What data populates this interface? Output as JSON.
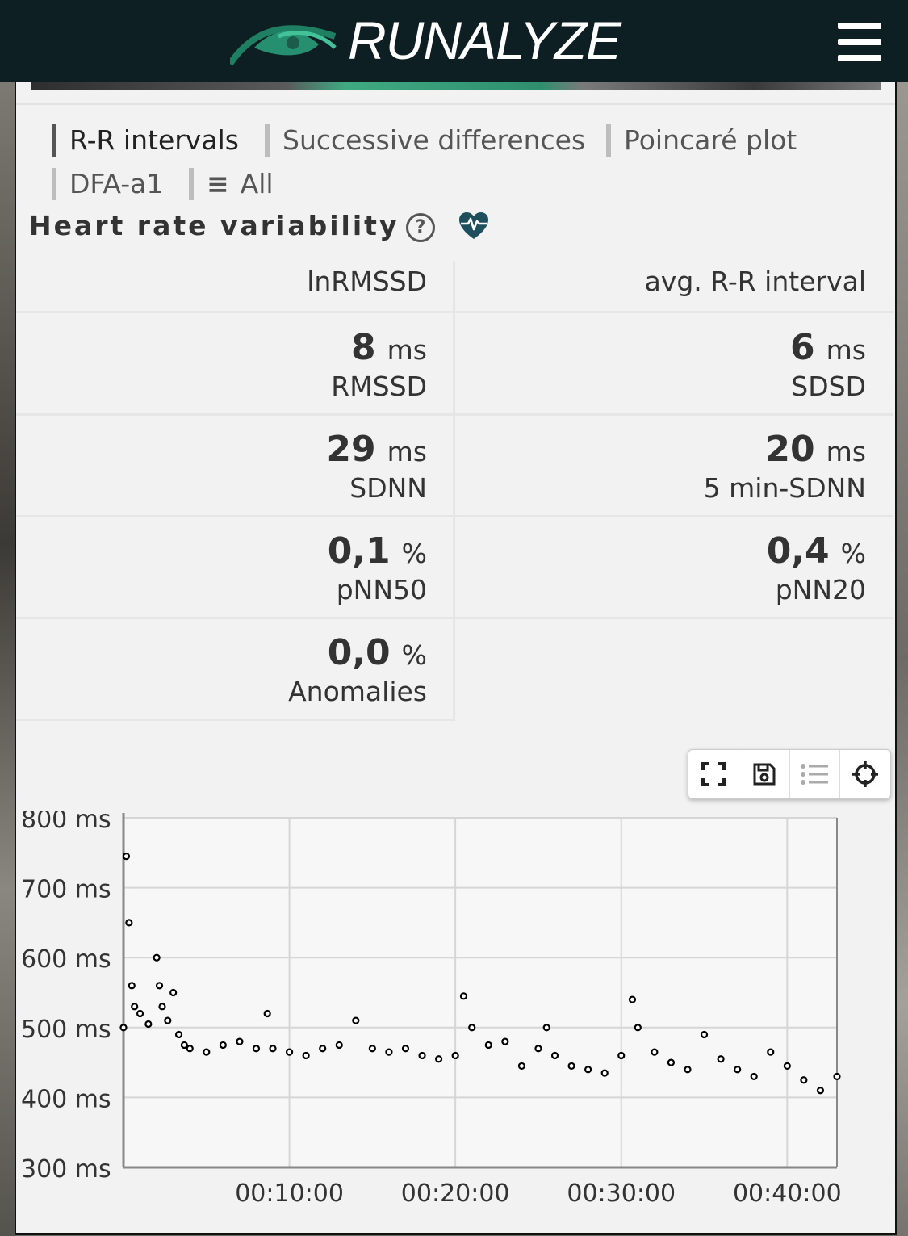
{
  "header": {
    "logo_text": "RUNALYZE",
    "menu_icon": "hamburger-icon"
  },
  "tabs": [
    {
      "label": "R-R intervals",
      "active": true
    },
    {
      "label": "Successive differences",
      "active": false
    },
    {
      "label": "Poincaré plot",
      "active": false
    },
    {
      "label": "DFA-a1",
      "active": false
    },
    {
      "label": "All",
      "active": false,
      "icon": "list-icon"
    }
  ],
  "section": {
    "title": "Heart rate variability",
    "help_icon": "help-circle-icon",
    "status_icon": "heart-pulse-icon",
    "status_color": "#1d4f5c"
  },
  "metrics": {
    "row0": {
      "left_label": "lnRMSSD",
      "right_label": "avg. R-R interval"
    },
    "row1": {
      "left_value": "8",
      "left_unit": "ms",
      "left_label": "RMSSD",
      "right_value": "6",
      "right_unit": "ms",
      "right_label": "SDSD"
    },
    "row2": {
      "left_value": "29",
      "left_unit": "ms",
      "left_label": "SDNN",
      "right_value": "20",
      "right_unit": "ms",
      "right_label": "5 min-SDNN"
    },
    "row3": {
      "left_value": "0,1",
      "left_unit": "%",
      "left_label": "pNN50",
      "right_value": "0,4",
      "right_unit": "%",
      "right_label": "pNN20"
    },
    "row4": {
      "left_value": "0,0",
      "left_unit": "%",
      "left_label": "Anomalies"
    }
  },
  "chart_toolbar": [
    "fullscreen-icon",
    "save-icon",
    "list-icon",
    "crosshair-icon"
  ],
  "chart_data": {
    "type": "scatter",
    "title": "",
    "xlabel": "",
    "ylabel": "",
    "ylim": [
      300,
      800
    ],
    "xlim_seconds": [
      0,
      2580
    ],
    "y_ticks": [
      "800 ms",
      "700 ms",
      "600 ms",
      "500 ms",
      "400 ms",
      "300 ms"
    ],
    "x_ticks": [
      "00:10:00",
      "00:20:00",
      "00:30:00",
      "00:40:00"
    ],
    "grid": true,
    "series": [
      {
        "color": "#000000",
        "x": [
          "00:00:00",
          "00:00:10",
          "00:00:20",
          "00:00:30",
          "00:00:40",
          "00:01:00",
          "00:01:30",
          "00:02:00",
          "00:02:10",
          "00:02:20",
          "00:02:40",
          "00:03:00",
          "00:03:20",
          "00:03:40",
          "00:04:00",
          "00:05:00",
          "00:06:00",
          "00:07:00",
          "00:08:00",
          "00:08:40",
          "00:09:00",
          "00:10:00",
          "00:11:00",
          "00:12:00",
          "00:13:00",
          "00:14:00",
          "00:15:00",
          "00:16:00",
          "00:17:00",
          "00:18:00",
          "00:19:00",
          "00:20:00",
          "00:20:30",
          "00:21:00",
          "00:22:00",
          "00:23:00",
          "00:24:00",
          "00:25:00",
          "00:25:30",
          "00:26:00",
          "00:27:00",
          "00:28:00",
          "00:29:00",
          "00:30:00",
          "00:30:40",
          "00:31:00",
          "00:32:00",
          "00:33:00",
          "00:34:00",
          "00:35:00",
          "00:36:00",
          "00:37:00",
          "00:38:00",
          "00:39:00",
          "00:40:00",
          "00:41:00",
          "00:42:00",
          "00:43:00"
        ],
        "y": [
          500,
          745,
          650,
          560,
          530,
          520,
          505,
          600,
          560,
          530,
          510,
          550,
          490,
          475,
          470,
          465,
          475,
          480,
          470,
          520,
          470,
          465,
          460,
          470,
          475,
          510,
          470,
          465,
          470,
          460,
          455,
          460,
          545,
          500,
          475,
          480,
          445,
          470,
          500,
          460,
          445,
          440,
          435,
          460,
          540,
          500,
          465,
          450,
          440,
          490,
          455,
          440,
          430,
          465,
          445,
          425,
          410,
          430
        ]
      }
    ]
  }
}
